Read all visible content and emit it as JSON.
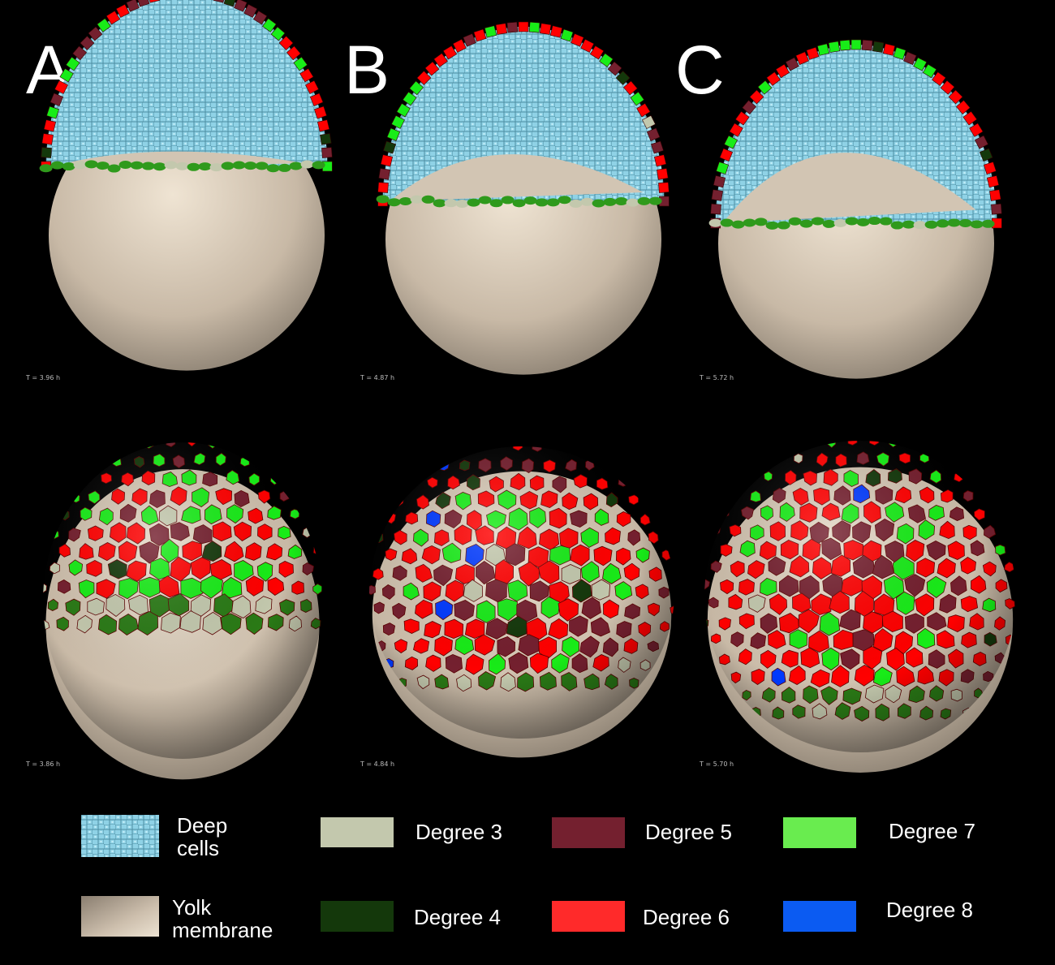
{
  "panels": [
    {
      "letter": "A",
      "time_top": "T = 3.96 h",
      "time_bottom": "T = 3.86 h"
    },
    {
      "letter": "B",
      "time_top": "T = 4.87 h",
      "time_bottom": "T = 4.84 h"
    },
    {
      "letter": "C",
      "time_top": "T = 5.72 h",
      "time_bottom": "T = 5.70 h"
    }
  ],
  "colors": {
    "deep": "#8fd2e6",
    "yolk": "#c8b9a6",
    "degree3": "#c3c8ad",
    "degree4": "#14380b",
    "degree5": "#74202f",
    "degree6": "#ff0000",
    "degree7": "#18ec18",
    "degree8": "#0039ff"
  },
  "legend": {
    "deep_line1": "Deep",
    "deep_line2": "cells",
    "yolk_line1": "Yolk",
    "yolk_line2": "membrane",
    "degree3": "Degree 3",
    "degree4": "Degree 4",
    "degree5": "Degree 5",
    "degree6": "Degree 6",
    "degree7": "Degree 7",
    "degree8": "Degree 8"
  }
}
